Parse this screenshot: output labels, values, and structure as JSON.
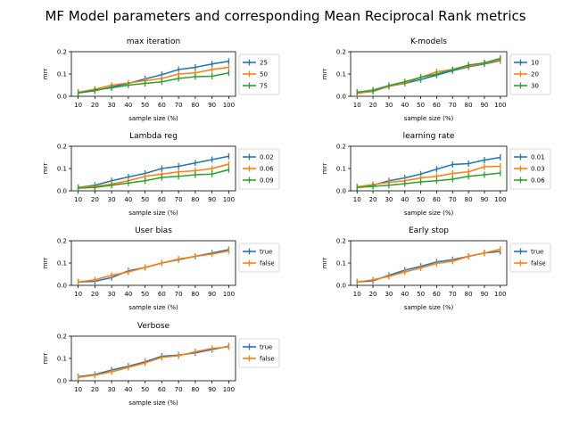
{
  "suptitle": "MF Model parameters and corresponding Mean Reciprocal Rank metrics",
  "colors": [
    "#1f77b4",
    "#ff7f0e",
    "#2ca02c"
  ],
  "chart_data": [
    {
      "type": "line",
      "title": "max iteration",
      "xlabel": "sample size (%)",
      "ylabel": "mrr",
      "x": [
        10,
        20,
        30,
        40,
        50,
        60,
        70,
        80,
        90,
        100
      ],
      "ylim": [
        0,
        0.2
      ],
      "yticks": [
        "0.0",
        "0.1",
        "0.2"
      ],
      "legend": "right-outside",
      "series": [
        {
          "name": "25",
          "values": [
            0.015,
            0.025,
            0.042,
            0.058,
            0.078,
            0.097,
            0.12,
            0.13,
            0.145,
            0.157
          ]
        },
        {
          "name": "50",
          "values": [
            0.018,
            0.032,
            0.05,
            0.06,
            0.07,
            0.08,
            0.1,
            0.105,
            0.12,
            0.13
          ]
        },
        {
          "name": "75",
          "values": [
            0.015,
            0.028,
            0.038,
            0.05,
            0.058,
            0.065,
            0.08,
            0.088,
            0.09,
            0.105
          ]
        }
      ]
    },
    {
      "type": "line",
      "title": "K-models",
      "xlabel": "sample size (%)",
      "ylabel": "mrr",
      "x": [
        10,
        20,
        30,
        40,
        50,
        60,
        70,
        80,
        90,
        100
      ],
      "ylim": [
        0,
        0.2
      ],
      "yticks": [
        "0.0",
        "0.1",
        "0.2"
      ],
      "legend": "right-outside",
      "series": [
        {
          "name": "10",
          "values": [
            0.015,
            0.022,
            0.045,
            0.058,
            0.075,
            0.095,
            0.115,
            0.132,
            0.145,
            0.16
          ]
        },
        {
          "name": "20",
          "values": [
            0.012,
            0.025,
            0.045,
            0.06,
            0.085,
            0.11,
            0.12,
            0.135,
            0.148,
            0.163
          ]
        },
        {
          "name": "30",
          "values": [
            0.018,
            0.028,
            0.048,
            0.065,
            0.085,
            0.1,
            0.12,
            0.14,
            0.15,
            0.17
          ]
        }
      ]
    },
    {
      "type": "line",
      "title": "Lambda reg",
      "xlabel": "sample size (%)",
      "ylabel": "mrr",
      "x": [
        10,
        20,
        30,
        40,
        50,
        60,
        70,
        80,
        90,
        100
      ],
      "ylim": [
        0,
        0.2
      ],
      "yticks": [
        "0.0",
        "0.1",
        "0.2"
      ],
      "legend": "right-outside",
      "series": [
        {
          "name": "0.02",
          "values": [
            0.015,
            0.025,
            0.045,
            0.062,
            0.078,
            0.1,
            0.11,
            0.125,
            0.14,
            0.155
          ]
        },
        {
          "name": "0.06",
          "values": [
            0.015,
            0.02,
            0.03,
            0.045,
            0.065,
            0.075,
            0.085,
            0.09,
            0.1,
            0.12
          ]
        },
        {
          "name": "0.09",
          "values": [
            0.012,
            0.015,
            0.025,
            0.035,
            0.045,
            0.06,
            0.065,
            0.072,
            0.075,
            0.095
          ]
        }
      ]
    },
    {
      "type": "line",
      "title": "learning rate",
      "xlabel": "sample size (%)",
      "ylabel": "mrr",
      "x": [
        10,
        20,
        30,
        40,
        50,
        60,
        70,
        80,
        90,
        100
      ],
      "ylim": [
        0,
        0.2
      ],
      "yticks": [
        "0.0",
        "0.1",
        "0.2"
      ],
      "legend": "right-outside",
      "series": [
        {
          "name": "0.01",
          "values": [
            0.015,
            0.025,
            0.045,
            0.058,
            0.075,
            0.097,
            0.118,
            0.122,
            0.138,
            0.15
          ]
        },
        {
          "name": "0.03",
          "values": [
            0.018,
            0.028,
            0.038,
            0.045,
            0.058,
            0.065,
            0.078,
            0.085,
            0.108,
            0.11
          ]
        },
        {
          "name": "0.06",
          "values": [
            0.015,
            0.02,
            0.025,
            0.032,
            0.04,
            0.045,
            0.052,
            0.065,
            0.072,
            0.08
          ]
        }
      ]
    },
    {
      "type": "line",
      "title": "User bias",
      "xlabel": "sample size (%)",
      "ylabel": "mrr",
      "x": [
        10,
        20,
        30,
        40,
        50,
        60,
        70,
        80,
        90,
        100
      ],
      "ylim": [
        0,
        0.2
      ],
      "yticks": [
        "0.0",
        "0.1",
        "0.2"
      ],
      "legend": "right-outside",
      "series": [
        {
          "name": "true",
          "values": [
            0.015,
            0.018,
            0.035,
            0.065,
            0.08,
            0.1,
            0.115,
            0.13,
            0.145,
            0.16
          ]
        },
        {
          "name": "false",
          "values": [
            0.015,
            0.025,
            0.045,
            0.06,
            0.08,
            0.1,
            0.118,
            0.13,
            0.14,
            0.155
          ]
        }
      ]
    },
    {
      "type": "line",
      "title": "Early stop",
      "xlabel": "sample size (%)",
      "ylabel": "mrr",
      "x": [
        10,
        20,
        30,
        40,
        50,
        60,
        70,
        80,
        90,
        100
      ],
      "ylim": [
        0,
        0.2
      ],
      "yticks": [
        "0.0",
        "0.1",
        "0.2"
      ],
      "legend": "right-outside",
      "series": [
        {
          "name": "true",
          "values": [
            0.015,
            0.02,
            0.045,
            0.068,
            0.085,
            0.105,
            0.115,
            0.13,
            0.145,
            0.152
          ]
        },
        {
          "name": "false",
          "values": [
            0.015,
            0.025,
            0.04,
            0.06,
            0.078,
            0.098,
            0.108,
            0.13,
            0.145,
            0.162
          ]
        }
      ]
    },
    {
      "type": "line",
      "title": "Verbose",
      "xlabel": "sample size (%)",
      "ylabel": "mrr",
      "x": [
        10,
        20,
        30,
        40,
        50,
        60,
        70,
        80,
        90,
        100
      ],
      "ylim": [
        0,
        0.2
      ],
      "yticks": [
        "0.0",
        "0.1",
        "0.2"
      ],
      "legend": "right-outside",
      "series": [
        {
          "name": "true",
          "values": [
            0.018,
            0.028,
            0.048,
            0.065,
            0.085,
            0.11,
            0.115,
            0.125,
            0.14,
            0.155
          ]
        },
        {
          "name": "false",
          "values": [
            0.015,
            0.025,
            0.04,
            0.06,
            0.08,
            0.105,
            0.112,
            0.13,
            0.145,
            0.152
          ]
        }
      ]
    }
  ]
}
